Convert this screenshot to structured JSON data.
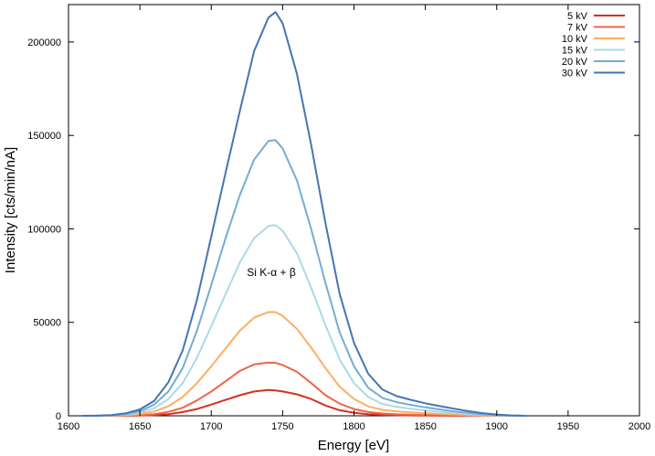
{
  "chart_data": {
    "type": "line",
    "title": "",
    "xlabel": "Energy [eV]",
    "ylabel": "Intensity [cts/min/nA]",
    "xlim": [
      1600,
      2000
    ],
    "ylim": [
      0,
      220000
    ],
    "x_ticks": [
      1600,
      1650,
      1700,
      1750,
      1800,
      1850,
      1900,
      1950,
      2000
    ],
    "y_ticks": [
      0,
      50000,
      100000,
      150000,
      200000
    ],
    "grid": false,
    "legend_position": "top-right",
    "annotation": "Si K-α + β",
    "x": [
      1610,
      1620,
      1630,
      1640,
      1650,
      1660,
      1670,
      1680,
      1690,
      1700,
      1710,
      1720,
      1730,
      1740,
      1745,
      1750,
      1760,
      1770,
      1780,
      1790,
      1800,
      1810,
      1820,
      1830,
      1840,
      1850,
      1860,
      1870,
      1880,
      1890,
      1900,
      1910,
      1920
    ],
    "series": [
      {
        "name": "5 kV",
        "color": "#d7301f",
        "values": [
          0,
          0,
          0,
          0,
          100,
          400,
          900,
          2000,
          3600,
          6000,
          8500,
          11000,
          13000,
          13800,
          13600,
          13000,
          11500,
          9000,
          5500,
          3000,
          1600,
          900,
          500,
          300,
          200,
          100,
          50,
          0,
          0,
          0,
          0,
          0,
          0
        ]
      },
      {
        "name": "7 kV",
        "color": "#ef6548",
        "values": [
          0,
          0,
          0,
          100,
          300,
          900,
          2100,
          4300,
          8200,
          13000,
          18500,
          24000,
          27500,
          28500,
          28300,
          27200,
          23500,
          17500,
          11000,
          6500,
          3600,
          2000,
          1200,
          800,
          600,
          400,
          300,
          200,
          100,
          0,
          0,
          0,
          0
        ]
      },
      {
        "name": "10 kV",
        "color": "#fdae61",
        "values": [
          0,
          0,
          100,
          300,
          900,
          2300,
          5200,
          10000,
          17500,
          26500,
          36000,
          45500,
          52500,
          55500,
          55500,
          53500,
          46500,
          36500,
          25500,
          15500,
          9000,
          5000,
          3200,
          2300,
          1800,
          1400,
          1000,
          700,
          400,
          200,
          100,
          0,
          0
        ]
      },
      {
        "name": "15 kV",
        "color": "#abd9e9",
        "values": [
          0,
          0,
          200,
          600,
          1600,
          4000,
          9000,
          17500,
          31000,
          48000,
          65000,
          82000,
          95000,
          101500,
          102000,
          99000,
          87000,
          68500,
          48500,
          30000,
          17500,
          10000,
          6300,
          4800,
          3700,
          2900,
          2200,
          1500,
          900,
          500,
          200,
          100,
          0
        ]
      },
      {
        "name": "20 kV",
        "color": "#74add1",
        "values": [
          0,
          0,
          300,
          900,
          2400,
          6000,
          13000,
          25500,
          45500,
          70000,
          95000,
          118000,
          137000,
          147000,
          147500,
          143000,
          126000,
          100000,
          71000,
          44500,
          26500,
          15000,
          9500,
          7300,
          5800,
          4500,
          3400,
          2400,
          1500,
          800,
          400,
          100,
          0
        ]
      },
      {
        "name": "30 kV",
        "color": "#4575b4",
        "values": [
          0,
          100,
          400,
          1300,
          3400,
          8000,
          18000,
          35000,
          62000,
          96000,
          130000,
          163000,
          195000,
          213000,
          216000,
          210000,
          183000,
          145000,
          103000,
          65000,
          39000,
          22500,
          14000,
          10500,
          8500,
          6700,
          5200,
          3800,
          2500,
          1400,
          700,
          200,
          0
        ]
      }
    ]
  }
}
